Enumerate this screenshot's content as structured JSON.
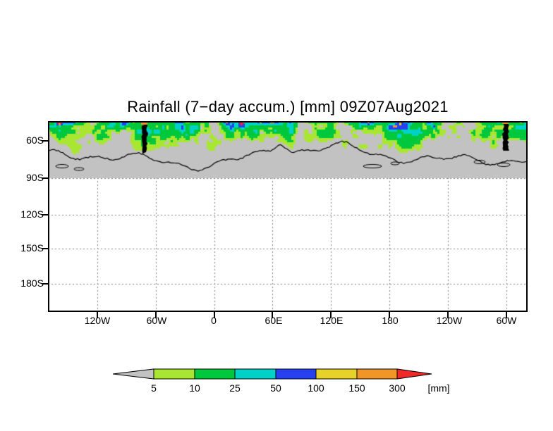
{
  "title": "Rainfall (7−day accum.) [mm] 09Z07Aug2021",
  "chart_data": {
    "type": "heatmap",
    "title": "Rainfall (7−day accum.) [mm] 09Z07Aug2021",
    "variable": "Rainfall (7-day accumulation)",
    "units": "mm",
    "timestamp": "09Z07Aug2021",
    "x_axis": {
      "tick_labels": [
        "120W",
        "60W",
        "0",
        "60E",
        "120E",
        "180",
        "120W",
        "60W"
      ]
    },
    "y_axis": {
      "tick_labels": [
        "60S",
        "90S",
        "120S",
        "150S",
        "180S"
      ]
    },
    "grid": true,
    "legend": {
      "position": "bottom",
      "units_label": "[mm]",
      "thresholds": [
        "5",
        "10",
        "25",
        "50",
        "100",
        "150",
        "300"
      ],
      "colors": [
        "#c2c2c2",
        "#a8e632",
        "#00c83c",
        "#00d2c8",
        "#2841f0",
        "#e6d228",
        "#f09628",
        "#f02828"
      ],
      "bin_meanings": [
        "<5",
        "5-10",
        "10-25",
        "25-50",
        "50-100",
        "100-150",
        "150-300",
        ">300"
      ]
    },
    "map": {
      "band_fill": "#c2c2c2",
      "south_of_90S": "blank white with dashed graticule",
      "shading_notes": "Speckled rainfall shading (mostly 5-50 mm yellow-green/green/cyan with embedded 50-100 mm blue patches) fills the top band near 60S; two isolated 150-300+ mm orange/red spots at the top edge beside black Antarctic Peninsula landmasses; black Antarctic coastline with small islands drawn across the gray band."
    }
  }
}
